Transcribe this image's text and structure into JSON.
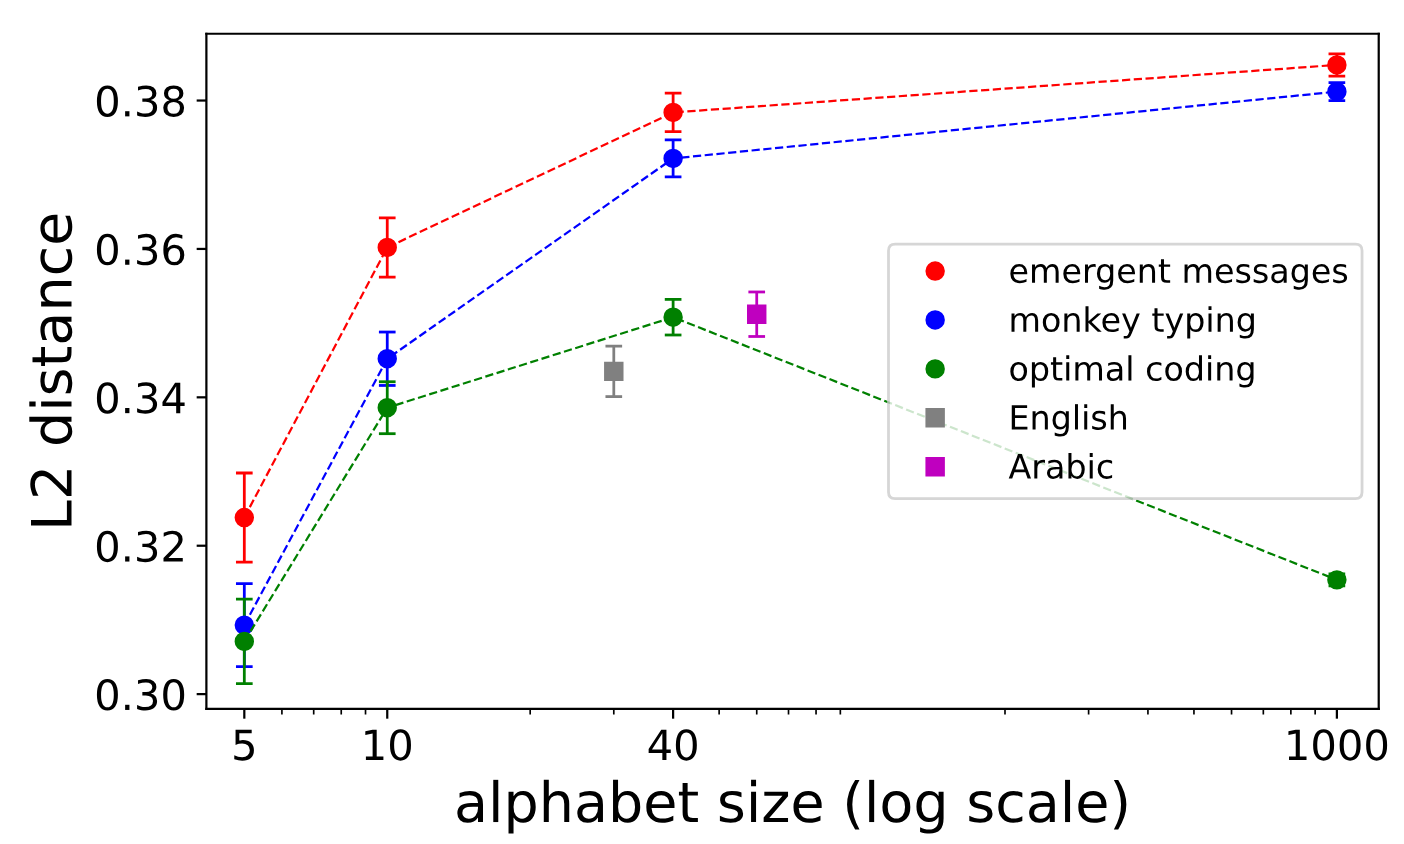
{
  "chart_data": {
    "type": "line",
    "xlabel": "alphabet size (log scale)",
    "ylabel": "L2 distance",
    "log": "x",
    "grid": false,
    "legend": "right",
    "xlim": [
      4.16,
      1225
    ],
    "ylim": [
      0.298,
      0.389
    ],
    "xticks": [
      5,
      10,
      40,
      1000
    ],
    "yticks": [
      {
        "value": 0.3,
        "label": "0.30"
      },
      {
        "value": 0.32,
        "label": "0.32"
      },
      {
        "value": 0.34,
        "label": "0.34"
      },
      {
        "value": 0.36,
        "label": "0.36"
      },
      {
        "value": 0.38,
        "label": "0.38"
      }
    ],
    "series": [
      {
        "name": "emergent messages",
        "color": "#ff0000",
        "marker": "circle",
        "line_style": "dashed",
        "x": [
          5,
          10,
          40,
          1000
        ],
        "values": [
          0.3238,
          0.3602,
          0.3784,
          0.3848
        ],
        "errors": [
          0.006,
          0.004,
          0.0026,
          0.0015
        ]
      },
      {
        "name": "monkey typing",
        "color": "#0000ff",
        "marker": "circle",
        "line_style": "dashed",
        "x": [
          5,
          10,
          40,
          1000
        ],
        "values": [
          0.3093,
          0.3452,
          0.3722,
          0.3812
        ],
        "errors": [
          0.0056,
          0.0036,
          0.0025,
          0.0012
        ]
      },
      {
        "name": "optimal coding",
        "color": "#008000",
        "marker": "circle",
        "line_style": "dashed",
        "x": [
          5,
          10,
          40,
          1000
        ],
        "values": [
          0.3071,
          0.3386,
          0.3508,
          0.3154
        ],
        "errors": [
          0.0057,
          0.0035,
          0.0024,
          0.0008
        ]
      },
      {
        "name": "English",
        "color": "#808080",
        "type": "scatter",
        "marker": "square",
        "x": [
          30
        ],
        "values": [
          0.3435
        ],
        "errors": [
          0.0034
        ]
      },
      {
        "name": "Arabic",
        "color": "#bf00bf",
        "type": "scatter",
        "marker": "square",
        "x": [
          60
        ],
        "values": [
          0.3512
        ],
        "errors": [
          0.003
        ]
      }
    ]
  }
}
